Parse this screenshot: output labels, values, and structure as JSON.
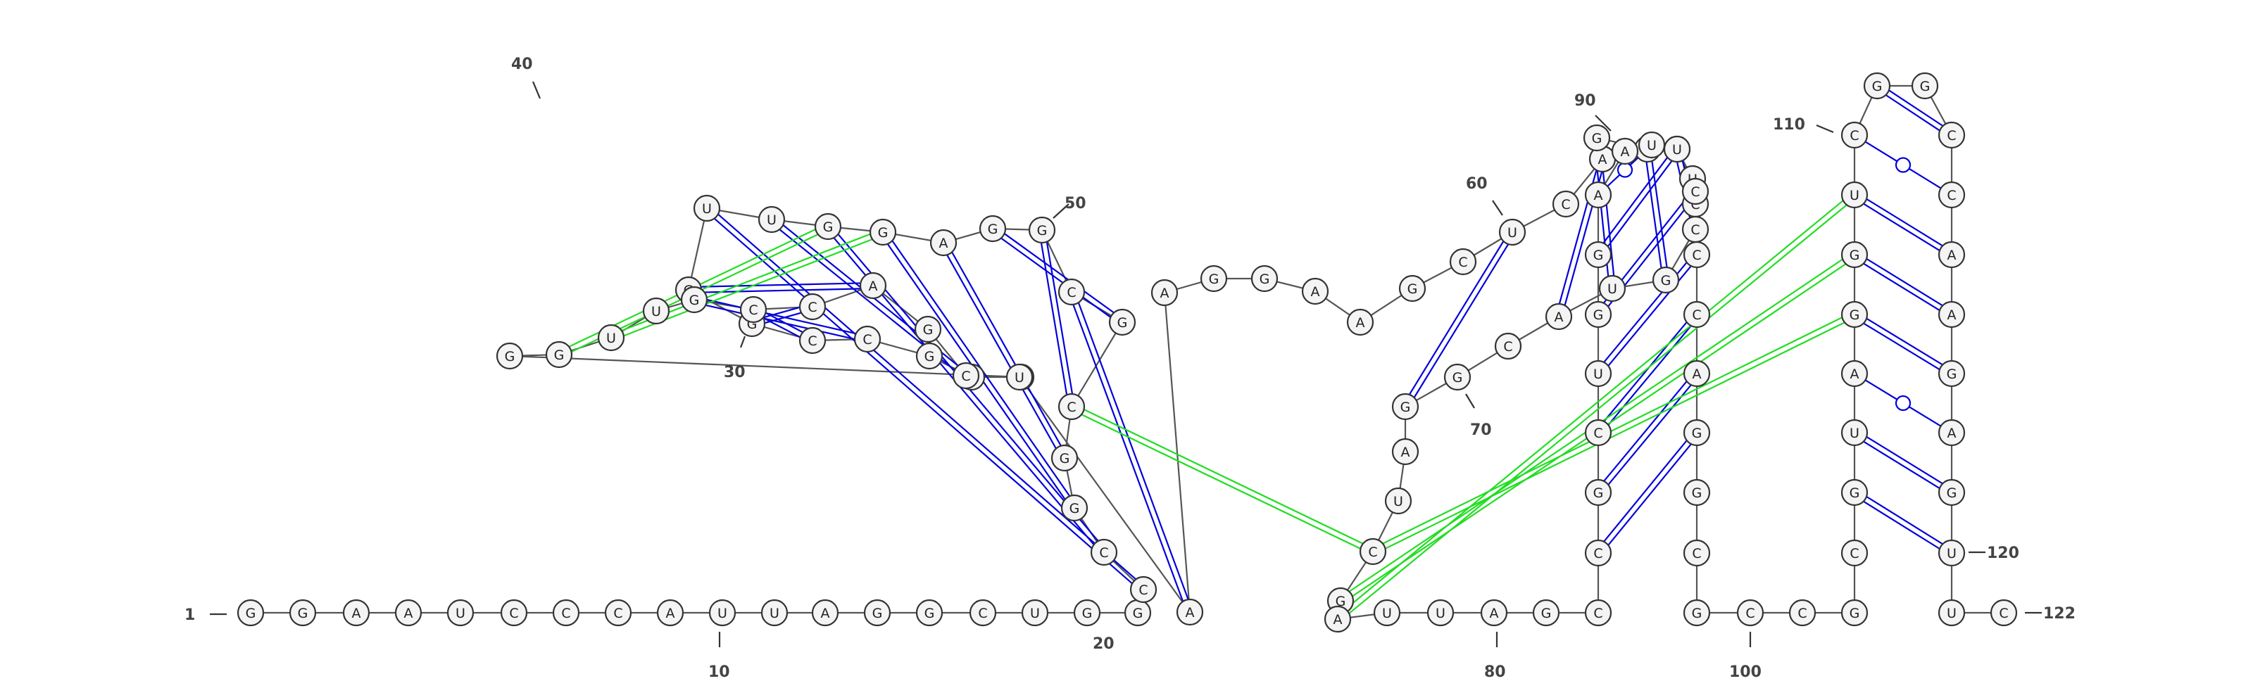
{
  "colors": {
    "canonical_pair": "#0000dd",
    "pseudoknot_pair": "#22dd22",
    "backbone": "#555555",
    "nucleotide_fill": "#f4f4f4",
    "nucleotide_stroke": "#333333",
    "label": "#444444"
  },
  "sequence": "GGAAUCCCAUUAGGCUGGCCGGCGCGGAGGUUGGCCGACGGUUGCCAGCUAAGGAAGCUCAGCAUCCGUACGGAUCGAUUAGCCGCUGGAAUUCCCAGGCGCCGCGUAGGUCGGCCAAGAGUUC",
  "residue_numbers": {
    "first": "1",
    "last": "122",
    "labels": [
      "10",
      "20",
      "30",
      "40",
      "50",
      "60",
      "70",
      "80",
      "90",
      "100",
      "110",
      "120"
    ]
  },
  "pairs": [
    {
      "i": 19,
      "j": 32,
      "type": "canonical"
    },
    {
      "i": 20,
      "j": 30,
      "type": "canonical"
    },
    {
      "i": 21,
      "j": 29,
      "type": "canonical"
    },
    {
      "i": 22,
      "j": 28,
      "type": "canonical"
    },
    {
      "i": 23,
      "j": 26,
      "type": "canonical"
    },
    {
      "i": 24,
      "j": 27,
      "type": "canonical"
    },
    {
      "i": 25,
      "j": 51,
      "type": "canonical"
    },
    {
      "i": 31,
      "j": 49,
      "type": "canonical"
    },
    {
      "i": 33,
      "j": 47,
      "type": "canonical"
    },
    {
      "i": 34,
      "j": 46,
      "type": "canonical"
    },
    {
      "i": 35,
      "j": 45,
      "type": "canonical"
    },
    {
      "i": 36,
      "j": 44,
      "type": "canonical"
    },
    {
      "i": 29,
      "j": 42,
      "type": "pseudoknot"
    },
    {
      "i": 30,
      "j": 41,
      "type": "pseudoknot"
    },
    {
      "i": 59,
      "j": 73,
      "type": "canonical"
    },
    {
      "i": 61,
      "j": 70,
      "type": "canonical"
    },
    {
      "i": 62,
      "j": 69,
      "type": "canonical"
    },
    {
      "i": 63,
      "j": 68,
      "type": "canonical"
    },
    {
      "i": 64,
      "j": 67,
      "type": "canonical"
    },
    {
      "i": 84,
      "j": 98,
      "type": "canonical"
    },
    {
      "i": 85,
      "j": 97,
      "type": "canonical"
    },
    {
      "i": 86,
      "j": 96,
      "type": "canonical"
    },
    {
      "i": 87,
      "j": 95,
      "type": "canonical"
    },
    {
      "i": 88,
      "j": 94,
      "type": "canonical"
    },
    {
      "i": 89,
      "j": 93,
      "type": "canonical"
    },
    {
      "i": 90,
      "j": 92,
      "type": "wobble"
    },
    {
      "i": 106,
      "j": 122,
      "type": "canonical"
    },
    {
      "i": 107,
      "j": 121,
      "type": "canonical"
    },
    {
      "i": 108,
      "j": 120,
      "type": "wobble"
    },
    {
      "i": 109,
      "j": 119,
      "type": "canonical"
    },
    {
      "i": 110,
      "j": 118,
      "type": "canonical"
    },
    {
      "i": 111,
      "j": 117,
      "type": "canonical"
    },
    {
      "i": 112,
      "j": 116,
      "type": "wobble"
    },
    {
      "i": 113,
      "j": 115,
      "type": "canonical"
    },
    {
      "i": 114,
      "j": 114,
      "type": "wobble"
    },
    {
      "i": 23,
      "j": 76,
      "type": "pseudoknot"
    },
    {
      "i": 78,
      "j": 111,
      "type": "pseudoknot"
    },
    {
      "i": 77,
      "j": 110,
      "type": "pseudoknot"
    },
    {
      "i": 76,
      "j": 109,
      "type": "pseudoknot"
    }
  ]
}
